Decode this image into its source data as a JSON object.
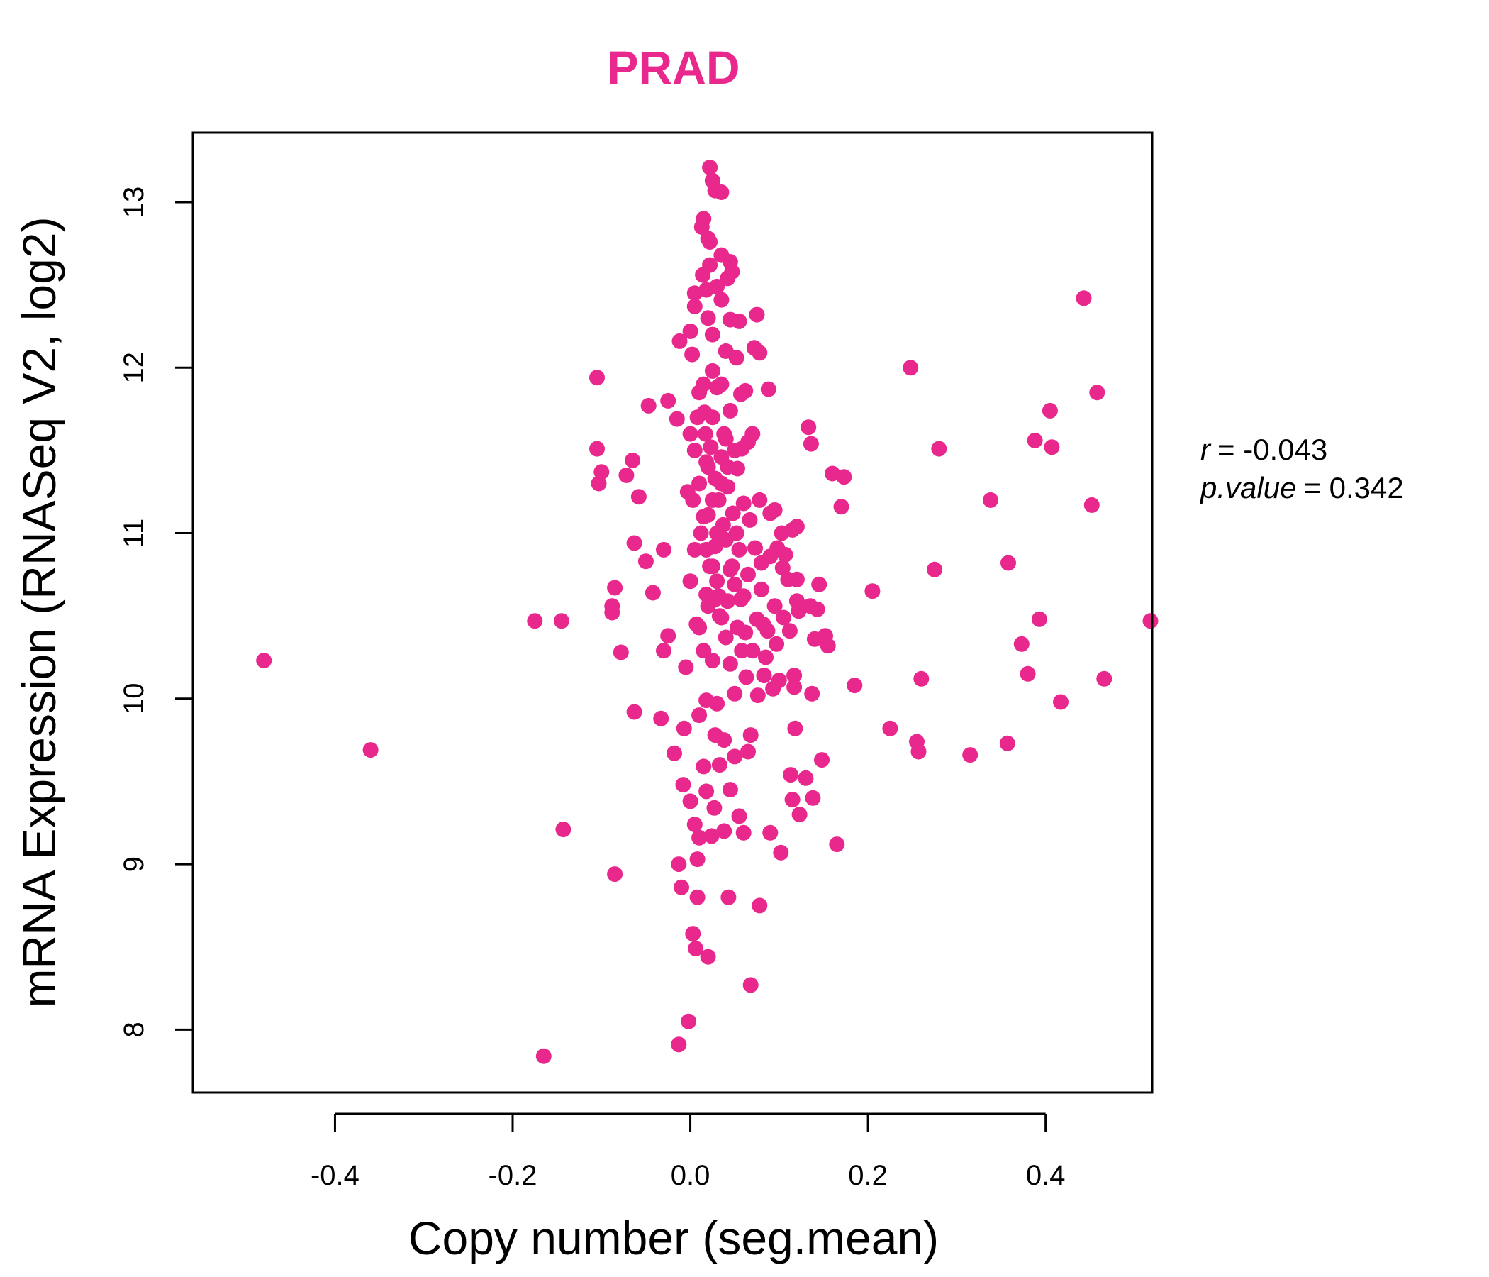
{
  "accent_color": "#e8288c",
  "chart_data": {
    "type": "scatter",
    "title": "PRAD",
    "xlabel": "Copy number (seg.mean)",
    "ylabel": "mRNA Expression (RNASeq V2, log2)",
    "xlim": [
      -0.56,
      0.52
    ],
    "ylim": [
      7.62,
      13.42
    ],
    "xticks": [
      -0.4,
      -0.2,
      0.0,
      0.2,
      0.4
    ],
    "xtick_labels": [
      "-0.4",
      "-0.2",
      "0.0",
      "0.2",
      "0.4"
    ],
    "yticks": [
      8,
      9,
      10,
      11,
      12,
      13
    ],
    "ytick_labels": [
      "8",
      "9",
      "10",
      "11",
      "12",
      "13"
    ],
    "grid": false,
    "point_color": "#e8288c",
    "annotations": {
      "r_name": "r",
      "r_value": "= -0.043",
      "p_name": "p.value",
      "p_value": "= 0.342"
    },
    "points": [
      [
        -0.48,
        10.23
      ],
      [
        -0.36,
        9.69
      ],
      [
        -0.175,
        10.47
      ],
      [
        -0.165,
        7.84
      ],
      [
        -0.145,
        10.47
      ],
      [
        -0.143,
        9.21
      ],
      [
        -0.105,
        11.94
      ],
      [
        -0.105,
        11.51
      ],
      [
        -0.103,
        11.3
      ],
      [
        -0.1,
        11.37
      ],
      [
        -0.088,
        10.52
      ],
      [
        -0.088,
        10.56
      ],
      [
        -0.085,
        10.67
      ],
      [
        -0.085,
        8.94
      ],
      [
        -0.078,
        10.28
      ],
      [
        -0.072,
        11.35
      ],
      [
        -0.065,
        11.44
      ],
      [
        -0.063,
        10.94
      ],
      [
        -0.063,
        9.92
      ],
      [
        -0.058,
        11.22
      ],
      [
        -0.05,
        10.83
      ],
      [
        -0.047,
        11.77
      ],
      [
        -0.042,
        10.64
      ],
      [
        -0.033,
        9.88
      ],
      [
        -0.03,
        10.9
      ],
      [
        -0.03,
        10.29
      ],
      [
        -0.025,
        11.8
      ],
      [
        -0.025,
        10.38
      ],
      [
        -0.018,
        9.67
      ],
      [
        -0.015,
        11.69
      ],
      [
        -0.013,
        9.0
      ],
      [
        -0.013,
        7.91
      ],
      [
        -0.012,
        12.16
      ],
      [
        -0.01,
        8.86
      ],
      [
        -0.008,
        9.48
      ],
      [
        -0.007,
        9.82
      ],
      [
        -0.005,
        10.19
      ],
      [
        -0.003,
        11.25
      ],
      [
        -0.002,
        8.05
      ],
      [
        0.0,
        12.22
      ],
      [
        0.0,
        11.6
      ],
      [
        0.0,
        10.71
      ],
      [
        0.0,
        9.38
      ],
      [
        0.002,
        12.08
      ],
      [
        0.003,
        8.58
      ],
      [
        0.005,
        12.45
      ],
      [
        0.005,
        12.37
      ],
      [
        0.005,
        9.24
      ],
      [
        0.006,
        8.49
      ],
      [
        0.007,
        10.45
      ],
      [
        0.008,
        9.03
      ],
      [
        0.008,
        8.8
      ],
      [
        0.01,
        11.85
      ],
      [
        0.01,
        10.43
      ],
      [
        0.01,
        9.9
      ],
      [
        0.01,
        9.16
      ],
      [
        0.013,
        12.85
      ],
      [
        0.014,
        12.56
      ],
      [
        0.015,
        12.9
      ],
      [
        0.015,
        10.29
      ],
      [
        0.015,
        9.59
      ],
      [
        0.016,
        11.73
      ],
      [
        0.017,
        11.6
      ],
      [
        0.018,
        12.47
      ],
      [
        0.018,
        11.43
      ],
      [
        0.018,
        10.63
      ],
      [
        0.018,
        9.99
      ],
      [
        0.018,
        9.44
      ],
      [
        0.02,
        12.78
      ],
      [
        0.02,
        12.3
      ],
      [
        0.02,
        11.11
      ],
      [
        0.02,
        10.56
      ],
      [
        0.02,
        8.44
      ],
      [
        0.022,
        13.21
      ],
      [
        0.022,
        12.76
      ],
      [
        0.022,
        12.62
      ],
      [
        0.023,
        11.52
      ],
      [
        0.024,
        9.17
      ],
      [
        0.025,
        13.13
      ],
      [
        0.025,
        12.2
      ],
      [
        0.025,
        11.98
      ],
      [
        0.025,
        10.8
      ],
      [
        0.025,
        10.23
      ],
      [
        0.027,
        9.34
      ],
      [
        0.028,
        13.07
      ],
      [
        0.028,
        11.33
      ],
      [
        0.028,
        10.92
      ],
      [
        0.028,
        9.78
      ],
      [
        0.03,
        12.49
      ],
      [
        0.03,
        11.88
      ],
      [
        0.03,
        10.71
      ],
      [
        0.03,
        9.97
      ],
      [
        0.032,
        11.2
      ],
      [
        0.032,
        10.62
      ],
      [
        0.033,
        9.6
      ],
      [
        0.035,
        13.06
      ],
      [
        0.035,
        12.68
      ],
      [
        0.035,
        12.41
      ],
      [
        0.035,
        11.46
      ],
      [
        0.035,
        10.49
      ],
      [
        0.037,
        11.05
      ],
      [
        0.038,
        9.75
      ],
      [
        0.038,
        9.2
      ],
      [
        0.04,
        12.1
      ],
      [
        0.04,
        11.57
      ],
      [
        0.04,
        10.96
      ],
      [
        0.04,
        10.37
      ],
      [
        0.042,
        12.54
      ],
      [
        0.042,
        11.28
      ],
      [
        0.042,
        10.59
      ],
      [
        0.043,
        8.8
      ],
      [
        0.045,
        12.64
      ],
      [
        0.045,
        12.29
      ],
      [
        0.045,
        11.74
      ],
      [
        0.045,
        10.78
      ],
      [
        0.045,
        10.21
      ],
      [
        0.045,
        9.45
      ],
      [
        0.047,
        12.58
      ],
      [
        0.048,
        11.12
      ],
      [
        0.05,
        11.5
      ],
      [
        0.05,
        10.69
      ],
      [
        0.05,
        10.03
      ],
      [
        0.05,
        9.65
      ],
      [
        0.052,
        12.06
      ],
      [
        0.053,
        11.39
      ],
      [
        0.053,
        10.43
      ],
      [
        0.055,
        12.28
      ],
      [
        0.055,
        10.9
      ],
      [
        0.055,
        9.29
      ],
      [
        0.057,
        11.84
      ],
      [
        0.058,
        11.51
      ],
      [
        0.058,
        10.29
      ],
      [
        0.06,
        11.18
      ],
      [
        0.06,
        10.62
      ],
      [
        0.06,
        9.19
      ],
      [
        0.062,
        11.86
      ],
      [
        0.063,
        10.13
      ],
      [
        0.065,
        11.55
      ],
      [
        0.065,
        10.75
      ],
      [
        0.065,
        9.68
      ],
      [
        0.067,
        11.08
      ],
      [
        0.068,
        9.78
      ],
      [
        0.068,
        8.27
      ],
      [
        0.07,
        11.6
      ],
      [
        0.07,
        10.29
      ],
      [
        0.072,
        12.12
      ],
      [
        0.073,
        10.91
      ],
      [
        0.075,
        12.32
      ],
      [
        0.075,
        10.48
      ],
      [
        0.076,
        10.02
      ],
      [
        0.078,
        12.09
      ],
      [
        0.078,
        11.2
      ],
      [
        0.078,
        8.75
      ],
      [
        0.08,
        10.66
      ],
      [
        0.08,
        10.82
      ],
      [
        0.082,
        10.45
      ],
      [
        0.083,
        10.14
      ],
      [
        0.085,
        10.25
      ],
      [
        0.087,
        10.41
      ],
      [
        0.088,
        11.87
      ],
      [
        0.09,
        11.12
      ],
      [
        0.09,
        10.86
      ],
      [
        0.09,
        9.19
      ],
      [
        0.093,
        10.06
      ],
      [
        0.095,
        11.14
      ],
      [
        0.095,
        10.56
      ],
      [
        0.097,
        10.33
      ],
      [
        0.098,
        10.91
      ],
      [
        0.1,
        10.11
      ],
      [
        0.102,
        9.07
      ],
      [
        0.103,
        11.0
      ],
      [
        0.104,
        10.79
      ],
      [
        0.105,
        10.49
      ],
      [
        0.107,
        10.87
      ],
      [
        0.11,
        10.72
      ],
      [
        0.112,
        10.41
      ],
      [
        0.113,
        9.54
      ],
      [
        0.115,
        11.02
      ],
      [
        0.115,
        9.39
      ],
      [
        0.117,
        10.14
      ],
      [
        0.117,
        10.07
      ],
      [
        0.118,
        9.82
      ],
      [
        0.12,
        11.04
      ],
      [
        0.12,
        10.59
      ],
      [
        0.12,
        10.72
      ],
      [
        0.122,
        10.53
      ],
      [
        0.123,
        9.3
      ],
      [
        0.13,
        9.52
      ],
      [
        0.133,
        11.64
      ],
      [
        0.135,
        10.56
      ],
      [
        0.136,
        11.54
      ],
      [
        0.137,
        10.03
      ],
      [
        0.138,
        9.4
      ],
      [
        0.14,
        10.36
      ],
      [
        0.143,
        10.54
      ],
      [
        0.145,
        10.69
      ],
      [
        0.148,
        9.63
      ],
      [
        0.152,
        10.38
      ],
      [
        0.155,
        10.32
      ],
      [
        0.16,
        11.36
      ],
      [
        0.165,
        9.12
      ],
      [
        0.17,
        11.16
      ],
      [
        0.173,
        11.34
      ],
      [
        0.185,
        10.08
      ],
      [
        0.205,
        10.65
      ],
      [
        0.225,
        9.82
      ],
      [
        0.248,
        12.0
      ],
      [
        0.255,
        9.74
      ],
      [
        0.257,
        9.68
      ],
      [
        0.26,
        10.12
      ],
      [
        0.275,
        10.78
      ],
      [
        0.28,
        11.51
      ],
      [
        0.315,
        9.66
      ],
      [
        0.338,
        11.2
      ],
      [
        0.357,
        9.73
      ],
      [
        0.358,
        10.82
      ],
      [
        0.373,
        10.33
      ],
      [
        0.38,
        10.15
      ],
      [
        0.388,
        11.56
      ],
      [
        0.393,
        10.48
      ],
      [
        0.405,
        11.74
      ],
      [
        0.407,
        11.52
      ],
      [
        0.417,
        9.98
      ],
      [
        0.443,
        12.42
      ],
      [
        0.452,
        11.17
      ],
      [
        0.458,
        11.85
      ],
      [
        0.466,
        10.12
      ],
      [
        0.518,
        10.47
      ],
      [
        0.005,
        11.5
      ],
      [
        0.01,
        11.3
      ],
      [
        0.015,
        11.1
      ],
      [
        0.02,
        11.4
      ],
      [
        0.025,
        11.2
      ],
      [
        0.03,
        11.0
      ],
      [
        0.035,
        11.3
      ],
      [
        0.012,
        11.0
      ],
      [
        0.018,
        10.9
      ],
      [
        0.022,
        10.8
      ],
      [
        0.028,
        10.6
      ],
      [
        0.033,
        10.5
      ],
      [
        0.038,
        11.6
      ],
      [
        0.042,
        11.4
      ],
      [
        0.008,
        11.7
      ],
      [
        0.003,
        11.2
      ],
      [
        0.047,
        10.8
      ],
      [
        0.052,
        11.0
      ],
      [
        0.057,
        10.6
      ],
      [
        0.062,
        10.4
      ],
      [
        0.015,
        11.9
      ],
      [
        0.025,
        11.7
      ],
      [
        0.035,
        11.9
      ],
      [
        0.005,
        10.9
      ]
    ]
  }
}
